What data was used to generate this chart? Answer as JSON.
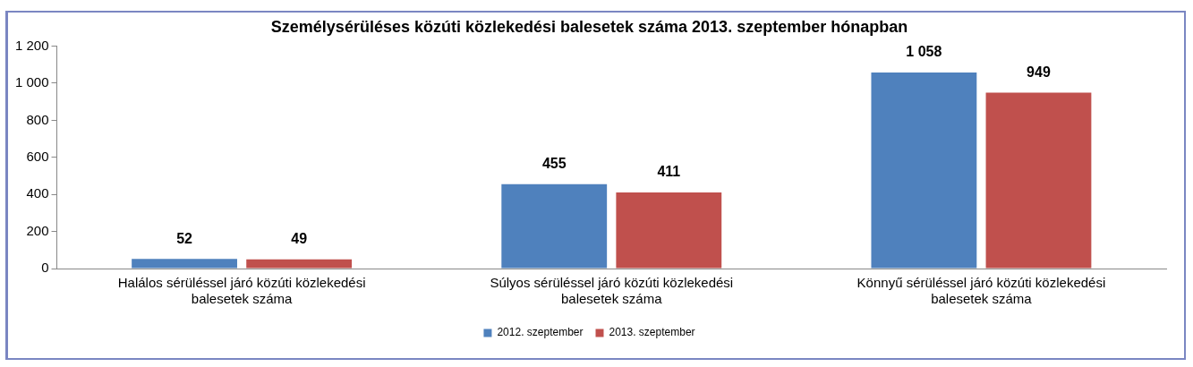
{
  "chart_data": {
    "type": "bar",
    "title": "Személysérüléses közúti közlekedési balesetek száma 2013. szeptember hónapban",
    "categories": [
      "Halálos sérüléssel járó közúti közlekedési balesetek száma",
      "Súlyos sérüléssel járó közúti közlekedési balesetek száma",
      "Könnyű sérüléssel járó közúti közlekedési balesetek száma"
    ],
    "series": [
      {
        "name": "2012. szeptember",
        "color": "#4f81bd",
        "values": [
          52,
          455,
          1058
        ],
        "value_labels": [
          "52",
          "455",
          "1 058"
        ]
      },
      {
        "name": "2013. szeptember",
        "color": "#c0504d",
        "values": [
          49,
          411,
          949
        ],
        "value_labels": [
          "49",
          "411",
          "949"
        ]
      }
    ],
    "ylim": [
      0,
      1200
    ],
    "yticks": [
      0,
      {
        "value": 200,
        "label": "200"
      },
      {
        "value": 400,
        "label": "400"
      },
      {
        "value": 600,
        "label": "600"
      },
      {
        "value": 800,
        "label": "800"
      },
      {
        "value": 1000,
        "label": "1 000"
      },
      {
        "value": 1200,
        "label": "1 200"
      }
    ],
    "grid": false,
    "legend": "bottom"
  }
}
